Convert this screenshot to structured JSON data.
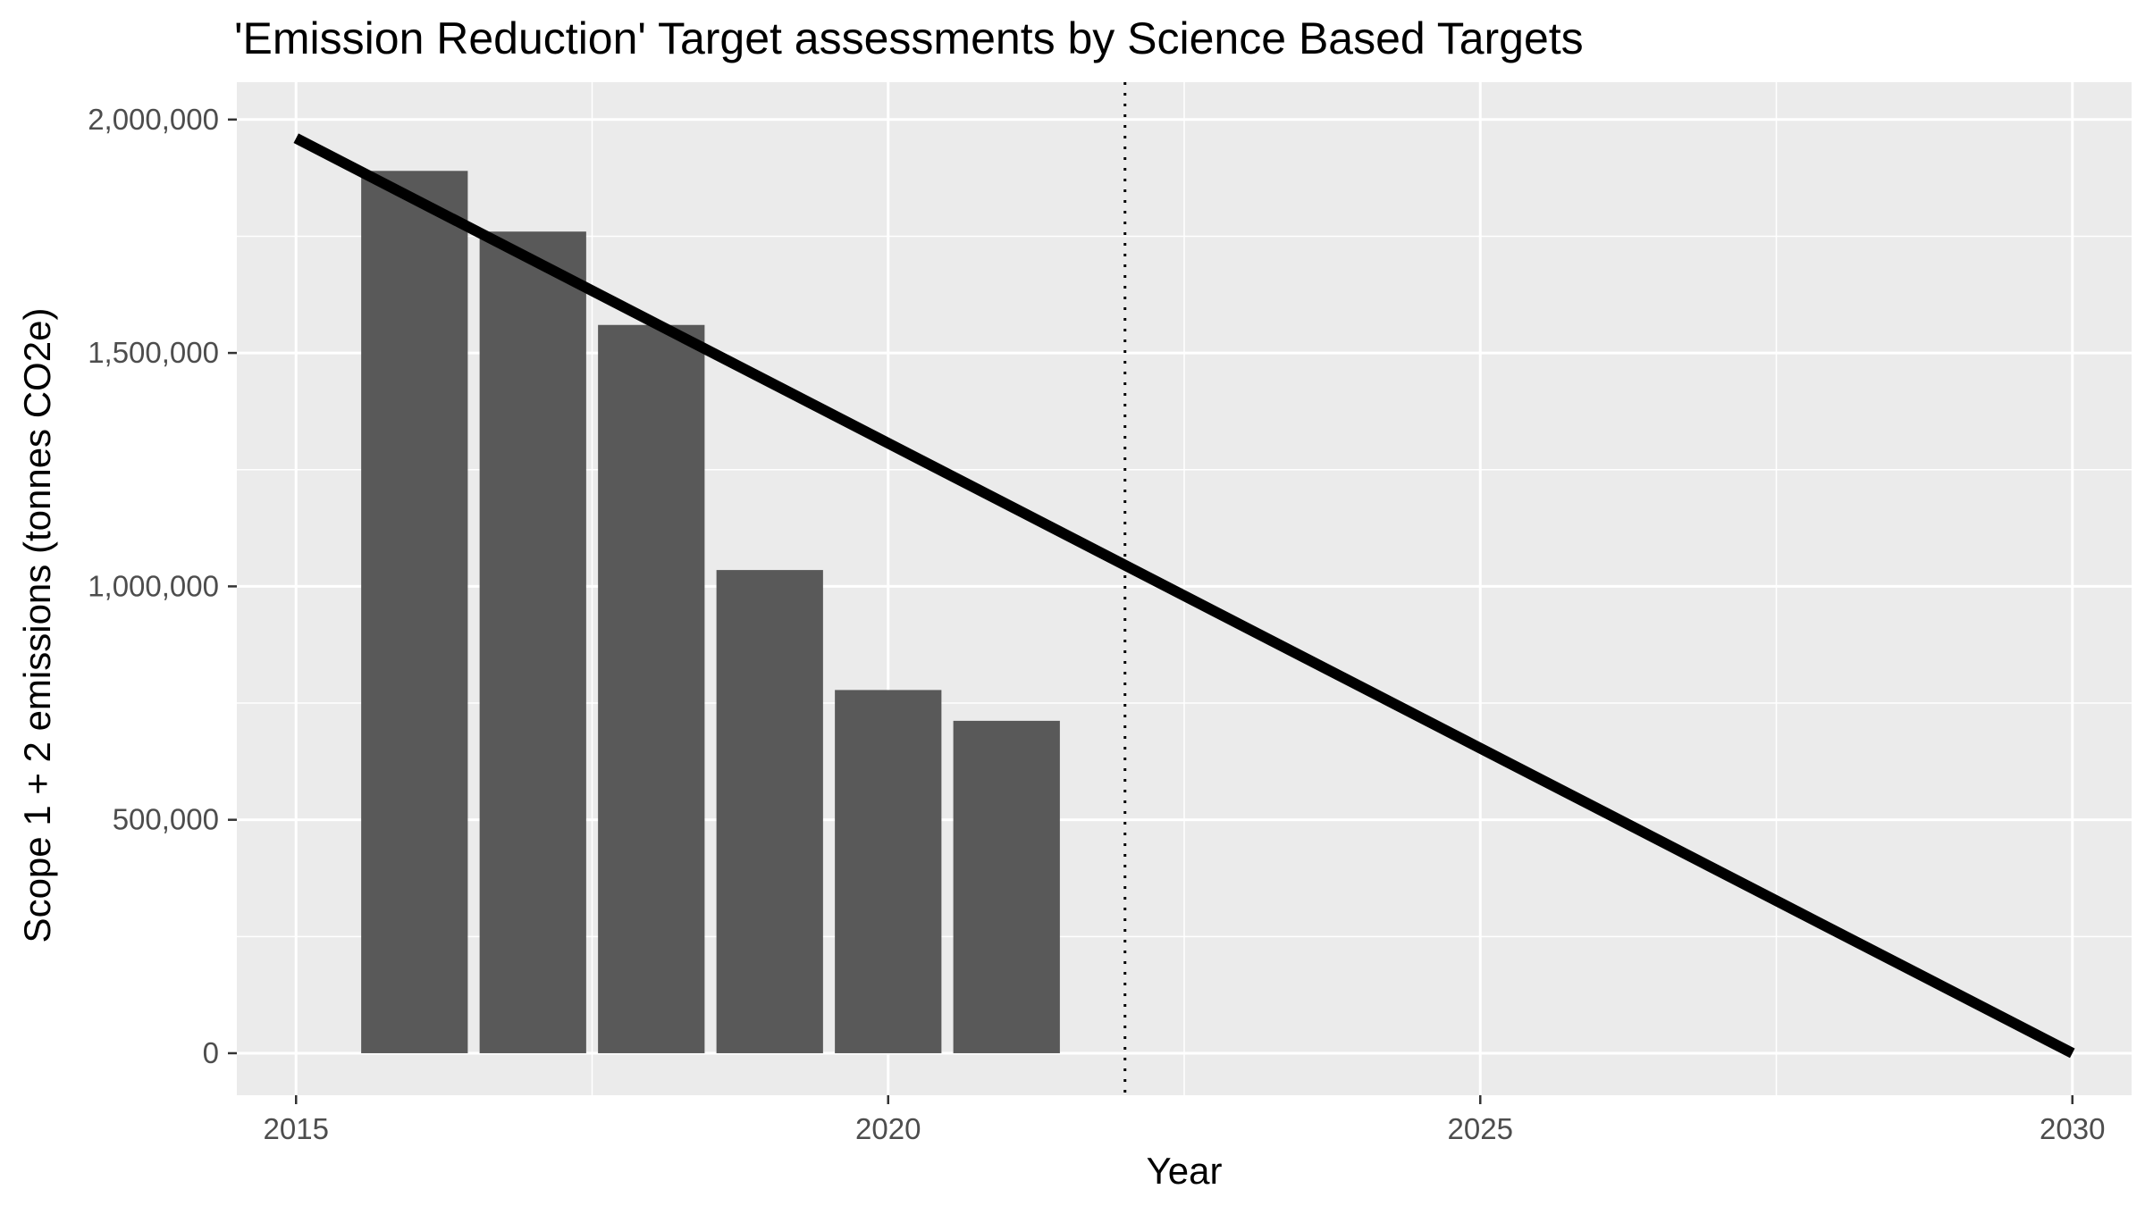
{
  "chart_data": {
    "type": "bar",
    "title": "'Emission Reduction' Target assessments by Science Based Targets",
    "xlabel": "Year",
    "ylabel": "Scope 1 + 2 emissions (tonnes CO2e)",
    "xlim": [
      2014.5,
      2030.5
    ],
    "ylim": [
      -90000,
      2080000
    ],
    "x_ticks": [
      2015,
      2020,
      2025,
      2030
    ],
    "x_tick_labels": [
      "2015",
      "2020",
      "2025",
      "2030"
    ],
    "y_ticks": [
      0,
      500000,
      1000000,
      1500000,
      2000000
    ],
    "y_tick_labels": [
      "0",
      "500,000",
      "1,000,000",
      "1,500,000",
      "2,000,000"
    ],
    "grid": true,
    "legend": "none",
    "series": [
      {
        "type": "bar",
        "x": [
          2016,
          2017,
          2018,
          2019,
          2020,
          2021
        ],
        "values": [
          1890000,
          1760000,
          1560000,
          1035000,
          778000,
          712000
        ],
        "color": "#595959"
      }
    ],
    "target_line": {
      "type": "line",
      "x": [
        2015,
        2030
      ],
      "y": [
        1960000,
        0
      ],
      "color": "#000000"
    },
    "reference_line": {
      "type": "vline",
      "x": 2022,
      "style": "dotted",
      "color": "#000000"
    },
    "colors": {
      "panel_background": "#ebebeb",
      "grid": "#ffffff",
      "bar": "#595959",
      "tick_text": "#4d4d4d"
    }
  }
}
